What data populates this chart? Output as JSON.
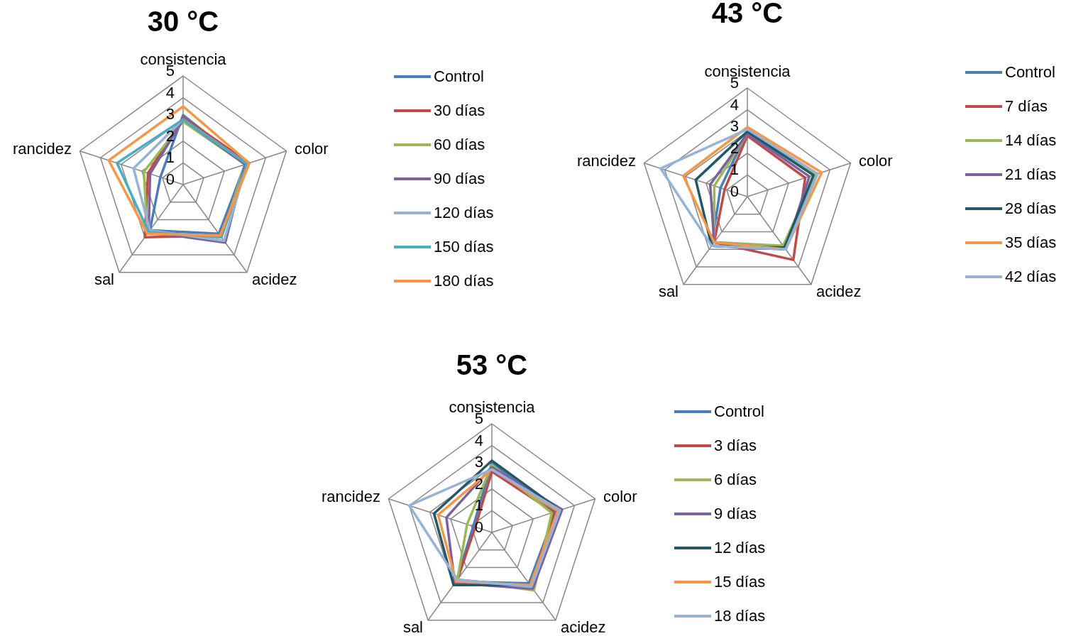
{
  "chart_data": [
    {
      "type": "radar",
      "title": "30 °C",
      "categories": [
        "consistencia",
        "color",
        "acidez",
        "sal",
        "rancidez"
      ],
      "ylim": [
        0,
        5
      ],
      "yticks": [
        0,
        1,
        2,
        3,
        4,
        5
      ],
      "grid": true,
      "legend": "right",
      "marker": "none",
      "series": [
        {
          "name": "Control",
          "color": "#4a7ebb",
          "values": [
            3.2,
            3.0,
            2.8,
            2.6,
            1.1
          ]
        },
        {
          "name": "30 días",
          "color": "#be4b48",
          "values": [
            3.1,
            3.2,
            2.9,
            3.0,
            1.7
          ]
        },
        {
          "name": "60 días",
          "color": "#98b954",
          "values": [
            2.9,
            3.0,
            3.0,
            2.8,
            1.9
          ]
        },
        {
          "name": "90 días",
          "color": "#7d60a0",
          "values": [
            3.0,
            3.0,
            3.3,
            2.7,
            1.6
          ]
        },
        {
          "name": "120 días",
          "color": "#95b3d7",
          "values": [
            3.0,
            3.1,
            3.2,
            2.6,
            2.4
          ]
        },
        {
          "name": "150 días",
          "color": "#4bacc6",
          "values": [
            3.0,
            3.1,
            3.0,
            2.7,
            3.2
          ]
        },
        {
          "name": "180 días",
          "color": "#f79646",
          "values": [
            3.6,
            3.2,
            2.9,
            2.8,
            3.6
          ]
        }
      ]
    },
    {
      "type": "radar",
      "title": "43 °C",
      "categories": [
        "consistencia",
        "color",
        "acidez",
        "sal",
        "rancidez"
      ],
      "ylim": [
        0,
        5
      ],
      "yticks": [
        0,
        1,
        2,
        3,
        4,
        5
      ],
      "grid": true,
      "legend": "right",
      "marker": "none",
      "series": [
        {
          "name": "Control",
          "color": "#4a7ebb",
          "values": [
            3.0,
            3.3,
            3.0,
            2.8,
            1.3
          ]
        },
        {
          "name": "7 días",
          "color": "#be4b48",
          "values": [
            2.8,
            2.8,
            3.6,
            2.6,
            1.1
          ]
        },
        {
          "name": "14 días",
          "color": "#98b954",
          "values": [
            2.9,
            3.3,
            2.8,
            2.6,
            1.6
          ]
        },
        {
          "name": "21 días",
          "color": "#7d60a0",
          "values": [
            2.9,
            3.0,
            3.0,
            2.6,
            1.8
          ]
        },
        {
          "name": "28 días",
          "color": "#215968",
          "values": [
            3.0,
            3.2,
            2.9,
            2.8,
            2.5
          ]
        },
        {
          "name": "35 días",
          "color": "#f79646",
          "values": [
            3.2,
            3.6,
            3.0,
            2.6,
            3.1
          ]
        },
        {
          "name": "42 días",
          "color": "#95b3d7",
          "values": [
            3.1,
            3.4,
            3.0,
            2.8,
            4.2
          ]
        }
      ]
    },
    {
      "type": "radar",
      "title": "53 °C",
      "categories": [
        "consistencia",
        "color",
        "acidez",
        "sal",
        "rancidez"
      ],
      "ylim": [
        0,
        5
      ],
      "yticks": [
        0,
        1,
        2,
        3,
        4,
        5
      ],
      "grid": true,
      "legend": "right",
      "marker": "none",
      "series": [
        {
          "name": "Control",
          "color": "#4a7ebb",
          "values": [
            3.2,
            3.1,
            2.9,
            2.8,
            0.9
          ]
        },
        {
          "name": "3 días",
          "color": "#be4b48",
          "values": [
            2.8,
            3.0,
            3.1,
            2.7,
            0.8
          ]
        },
        {
          "name": "6 días",
          "color": "#98b954",
          "values": [
            3.1,
            2.9,
            3.3,
            2.7,
            1.2
          ]
        },
        {
          "name": "9 días",
          "color": "#7d60a0",
          "values": [
            3.0,
            3.4,
            3.2,
            2.9,
            2.2
          ]
        },
        {
          "name": "12 días",
          "color": "#215968",
          "values": [
            3.3,
            3.3,
            3.0,
            3.0,
            2.8
          ]
        },
        {
          "name": "15 días",
          "color": "#f79646",
          "values": [
            2.9,
            3.2,
            3.0,
            2.8,
            2.6
          ]
        },
        {
          "name": "18 días",
          "color": "#95b3d7",
          "values": [
            2.9,
            3.3,
            3.1,
            2.7,
            4.0
          ]
        }
      ]
    }
  ]
}
